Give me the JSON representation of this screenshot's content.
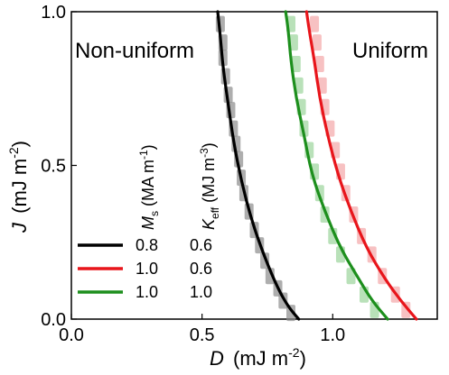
{
  "chart_data": {
    "type": "line",
    "xlabel_main": "D",
    "xlabel_unit": "(mJ m",
    "xlabel_exp": "-2",
    "xlabel_close": ")",
    "ylabel_main": "J",
    "ylabel_unit": "(mJ m",
    "ylabel_exp": "-2",
    "ylabel_close": ")",
    "xlim": [
      0.0,
      1.4
    ],
    "ylim": [
      0.0,
      1.0
    ],
    "xticks": [
      {
        "value": 0.0,
        "label": "0.0"
      },
      {
        "value": 0.5,
        "label": "0.5"
      },
      {
        "value": 1.0,
        "label": "1.0"
      }
    ],
    "yticks": [
      {
        "value": 0.0,
        "label": "0.0"
      },
      {
        "value": 0.5,
        "label": "0.5"
      },
      {
        "value": 1.0,
        "label": "1.0"
      }
    ],
    "annotations": {
      "left": "Non-uniform",
      "right": "Uniform"
    },
    "legend_header": {
      "ms_main": "M",
      "ms_sub": "s",
      "ms_unit": " (MA m",
      "ms_exp": "-1",
      "ms_close": ")",
      "keff_main": "K",
      "keff_sub": "eff",
      "keff_unit": " (MJ m",
      "keff_exp": "-3",
      "keff_close": ")"
    },
    "series": [
      {
        "ms": "0.8",
        "keff": "0.6",
        "color": "#000000",
        "marker_color": "#8c8c8c",
        "x": [
          0.87,
          0.83,
          0.79,
          0.74,
          0.69,
          0.65,
          0.62,
          0.6,
          0.58,
          0.57,
          0.56
        ],
        "y": [
          0.0,
          0.04,
          0.1,
          0.2,
          0.32,
          0.45,
          0.58,
          0.7,
          0.82,
          0.92,
          1.0
        ],
        "markers_x": [
          0.84,
          0.81,
          0.79,
          0.76,
          0.74,
          0.72,
          0.7,
          0.68,
          0.66,
          0.65,
          0.64,
          0.63,
          0.62,
          0.61,
          0.6,
          0.59,
          0.58,
          0.58,
          0.57
        ],
        "markers_y": [
          0.02,
          0.06,
          0.1,
          0.14,
          0.19,
          0.24,
          0.29,
          0.35,
          0.41,
          0.46,
          0.52,
          0.57,
          0.62,
          0.68,
          0.73,
          0.79,
          0.85,
          0.9,
          0.96
        ]
      },
      {
        "ms": "1.0",
        "keff": "0.6",
        "color": "#e8151b",
        "marker_color": "#f4a6a8",
        "x": [
          1.32,
          1.26,
          1.2,
          1.13,
          1.07,
          1.02,
          0.98,
          0.95,
          0.93,
          0.91,
          0.9
        ],
        "y": [
          0.0,
          0.06,
          0.13,
          0.23,
          0.35,
          0.47,
          0.6,
          0.72,
          0.84,
          0.94,
          1.0
        ],
        "markers_x": [
          1.28,
          1.24,
          1.19,
          1.15,
          1.11,
          1.08,
          1.05,
          1.03,
          1.01,
          0.99,
          0.97,
          0.96,
          0.95,
          0.94,
          0.93
        ],
        "markers_y": [
          0.03,
          0.08,
          0.14,
          0.21,
          0.27,
          0.34,
          0.41,
          0.48,
          0.55,
          0.62,
          0.69,
          0.76,
          0.83,
          0.9,
          0.96
        ]
      },
      {
        "ms": "1.0",
        "keff": "1.0",
        "color": "#1d8f1d",
        "marker_color": "#9bd49b",
        "x": [
          1.21,
          1.15,
          1.1,
          1.03,
          0.97,
          0.92,
          0.89,
          0.86,
          0.84,
          0.83,
          0.82
        ],
        "y": [
          0.0,
          0.06,
          0.13,
          0.23,
          0.35,
          0.47,
          0.6,
          0.72,
          0.84,
          0.94,
          1.0
        ],
        "markers_x": [
          1.16,
          1.12,
          1.07,
          1.03,
          1.0,
          0.97,
          0.95,
          0.93,
          0.91,
          0.89,
          0.88,
          0.87,
          0.86,
          0.85,
          0.84
        ],
        "markers_y": [
          0.03,
          0.08,
          0.14,
          0.21,
          0.27,
          0.34,
          0.41,
          0.48,
          0.55,
          0.62,
          0.69,
          0.76,
          0.83,
          0.9,
          0.96
        ]
      }
    ]
  }
}
